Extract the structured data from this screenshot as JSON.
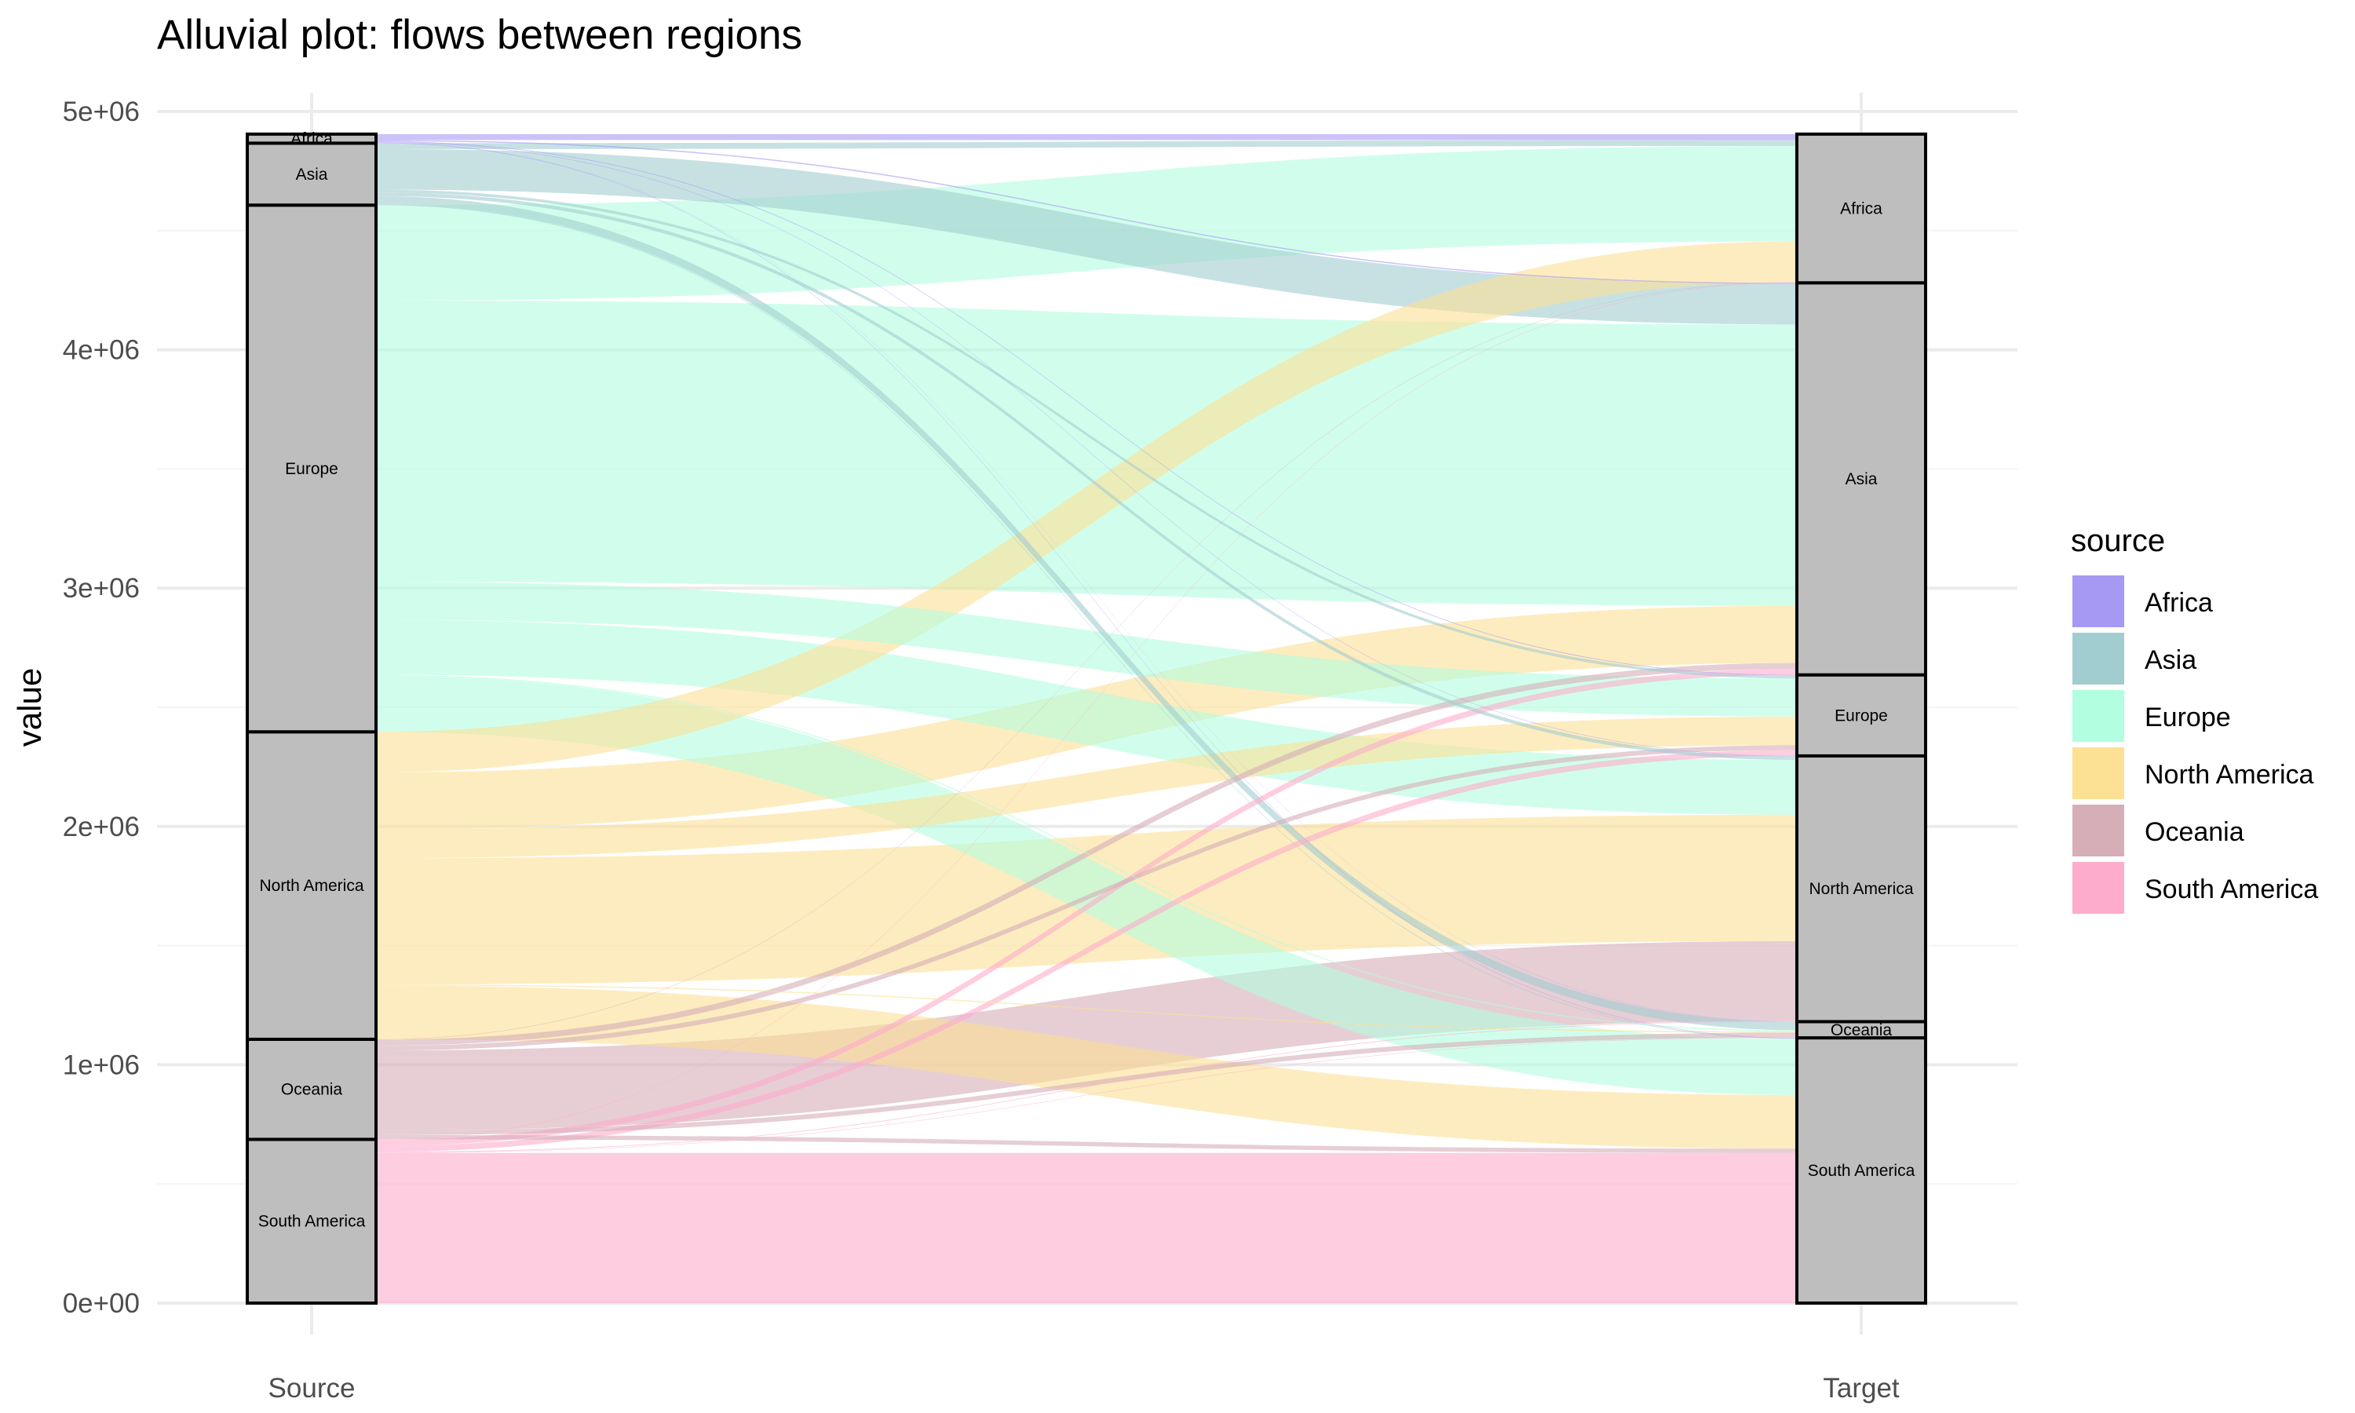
{
  "chart_data": {
    "type": "alluvial",
    "title": "Alluvial plot: flows between regions",
    "xlabel": "",
    "ylabel": "value",
    "axes": [
      "Source",
      "Target"
    ],
    "ylim": [
      0,
      5000000
    ],
    "y_ticks": [
      0,
      1000000,
      2000000,
      3000000,
      4000000,
      5000000
    ],
    "y_tick_labels": [
      "0e+00",
      "1e+06",
      "2e+06",
      "3e+06",
      "4e+06",
      "5e+06"
    ],
    "grid": true,
    "legend": {
      "title": "source",
      "position": "right"
    },
    "regions": [
      "South America",
      "Oceania",
      "North America",
      "Europe",
      "Asia",
      "Africa"
    ],
    "stratum_labels": {
      "source": {
        "South America": "South America",
        "Oceania": "Oceania",
        "North America": "North America",
        "Europe": "Europe",
        "Asia": "Asia",
        "Africa": "Africa"
      },
      "target": {
        "South America": "South America",
        "Oceania": "Oceania",
        "North America": "North America",
        "Europe": "Europe",
        "Asia": "Asia",
        "Africa": "Africa"
      }
    },
    "colors": {
      "Africa": "#a699f3",
      "Asia": "#a2cdd0",
      "Europe": "#b2fee0",
      "North America": "#fce094",
      "Oceania": "#d6aeb7",
      "South America": "#feaccb"
    },
    "flows": [
      {
        "source": "Africa",
        "target": "Africa",
        "value": 25000
      },
      {
        "source": "Africa",
        "target": "Asia",
        "value": 5000
      },
      {
        "source": "Africa",
        "target": "Europe",
        "value": 3000
      },
      {
        "source": "Africa",
        "target": "North America",
        "value": 2000
      },
      {
        "source": "Africa",
        "target": "Oceania",
        "value": 1000
      },
      {
        "source": "Africa",
        "target": "South America",
        "value": 2000
      },
      {
        "source": "Asia",
        "target": "Africa",
        "value": 25000
      },
      {
        "source": "Asia",
        "target": "Asia",
        "value": 170000
      },
      {
        "source": "Asia",
        "target": "Europe",
        "value": 12000
      },
      {
        "source": "Asia",
        "target": "North America",
        "value": 15000
      },
      {
        "source": "Asia",
        "target": "Oceania",
        "value": 35000
      },
      {
        "source": "Asia",
        "target": "South America",
        "value": 3000
      },
      {
        "source": "Europe",
        "target": "Africa",
        "value": 400000
      },
      {
        "source": "Europe",
        "target": "Asia",
        "value": 1180000
      },
      {
        "source": "Europe",
        "target": "Europe",
        "value": 160000
      },
      {
        "source": "Europe",
        "target": "North America",
        "value": 230000
      },
      {
        "source": "Europe",
        "target": "Oceania",
        "value": 5000
      },
      {
        "source": "Europe",
        "target": "South America",
        "value": 235000
      },
      {
        "source": "North America",
        "target": "Africa",
        "value": 170000
      },
      {
        "source": "North America",
        "target": "Asia",
        "value": 240000
      },
      {
        "source": "North America",
        "target": "Europe",
        "value": 120000
      },
      {
        "source": "North America",
        "target": "North America",
        "value": 530000
      },
      {
        "source": "North America",
        "target": "Oceania",
        "value": 5000
      },
      {
        "source": "North America",
        "target": "South America",
        "value": 225000
      },
      {
        "source": "Oceania",
        "target": "Africa",
        "value": 2000
      },
      {
        "source": "Oceania",
        "target": "Asia",
        "value": 25000
      },
      {
        "source": "Oceania",
        "target": "Europe",
        "value": 20000
      },
      {
        "source": "Oceania",
        "target": "North America",
        "value": 335000
      },
      {
        "source": "Oceania",
        "target": "Oceania",
        "value": 20000
      },
      {
        "source": "Oceania",
        "target": "South America",
        "value": 18000
      },
      {
        "source": "South America",
        "target": "Africa",
        "value": 2000
      },
      {
        "source": "South America",
        "target": "Asia",
        "value": 25000
      },
      {
        "source": "South America",
        "target": "Europe",
        "value": 25000
      },
      {
        "source": "South America",
        "target": "North America",
        "value": 3000
      },
      {
        "source": "South America",
        "target": "Oceania",
        "value": 2000
      },
      {
        "source": "South America",
        "target": "South America",
        "value": 630000
      }
    ]
  }
}
